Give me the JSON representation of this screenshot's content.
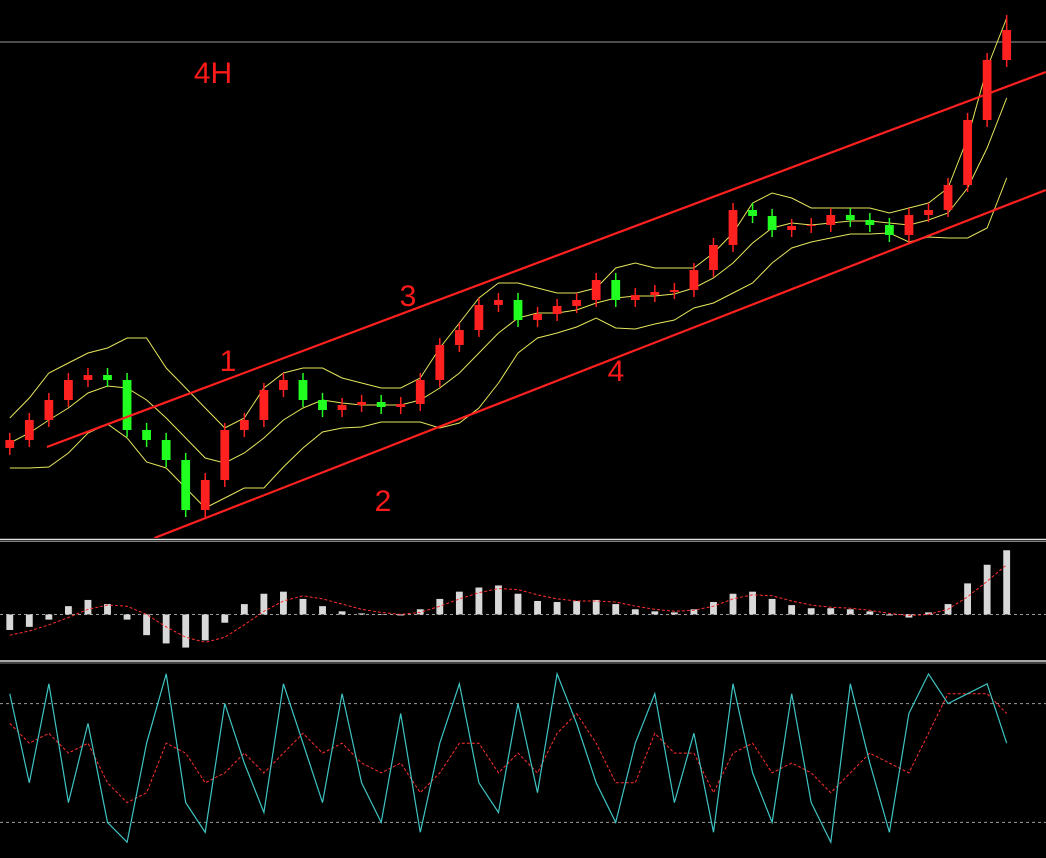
{
  "chart_data": [
    {
      "type": "candlestick",
      "annotations": [
        "4H",
        "1",
        "2",
        "3",
        "4"
      ],
      "xlim": [
        -0.5,
        52.5
      ],
      "ylim": [
        0,
        538
      ],
      "up_color": "#ff2020",
      "down_color": "#20ff20",
      "open": [
        90,
        98,
        118,
        138,
        158,
        163,
        158,
        108,
        98,
        78,
        28,
        58,
        108,
        118,
        148,
        158,
        138,
        128,
        133,
        136,
        131,
        134,
        158,
        193,
        208,
        233,
        238,
        218,
        224,
        232,
        238,
        258,
        238,
        243,
        246,
        248,
        268,
        293,
        328,
        322,
        308,
        312,
        313,
        323,
        318,
        313,
        303,
        323,
        328,
        353,
        418,
        478
      ],
      "high": [
        105,
        125,
        145,
        165,
        170,
        170,
        165,
        115,
        105,
        85,
        65,
        115,
        125,
        155,
        165,
        165,
        145,
        140,
        143,
        143,
        141,
        165,
        200,
        215,
        240,
        245,
        245,
        231,
        239,
        245,
        265,
        265,
        250,
        253,
        255,
        275,
        300,
        335,
        335,
        329,
        319,
        320,
        330,
        330,
        325,
        320,
        330,
        335,
        360,
        425,
        485,
        523
      ],
      "low": [
        83,
        91,
        111,
        131,
        151,
        151,
        101,
        91,
        71,
        21,
        21,
        51,
        101,
        111,
        141,
        131,
        121,
        121,
        126,
        124,
        124,
        127,
        151,
        186,
        201,
        226,
        211,
        211,
        217,
        225,
        231,
        231,
        231,
        236,
        239,
        241,
        261,
        286,
        315,
        301,
        301,
        305,
        306,
        311,
        306,
        296,
        296,
        316,
        321,
        346,
        411,
        471
      ],
      "close": [
        98,
        118,
        138,
        158,
        163,
        158,
        108,
        98,
        78,
        28,
        58,
        108,
        118,
        148,
        158,
        138,
        128,
        133,
        136,
        131,
        134,
        158,
        193,
        208,
        233,
        238,
        218,
        224,
        232,
        238,
        258,
        238,
        243,
        246,
        248,
        268,
        293,
        328,
        322,
        308,
        312,
        313,
        323,
        318,
        313,
        303,
        323,
        328,
        353,
        418,
        478,
        508
      ],
      "bands": {
        "color": "#e6e65c",
        "upper": [
          120,
          140,
          165,
          175,
          185,
          190,
          200,
          200,
          170,
          150,
          130,
          110,
          120,
          150,
          165,
          170,
          170,
          160,
          155,
          150,
          150,
          160,
          190,
          215,
          240,
          255,
          255,
          250,
          245,
          245,
          250,
          270,
          275,
          270,
          270,
          270,
          285,
          305,
          335,
          345,
          340,
          330,
          330,
          330,
          330,
          325,
          330,
          335,
          350,
          400,
          470,
          520
        ],
        "middle": [
          95,
          105,
          118,
          130,
          145,
          152,
          150,
          138,
          120,
          100,
          80,
          75,
          85,
          100,
          118,
          130,
          138,
          135,
          133,
          133,
          133,
          138,
          150,
          165,
          185,
          205,
          220,
          225,
          225,
          228,
          235,
          240,
          242,
          242,
          244,
          250,
          260,
          275,
          295,
          310,
          315,
          313,
          315,
          317,
          317,
          315,
          313,
          318,
          325,
          350,
          390,
          440
        ],
        "lower": [
          70,
          70,
          71,
          85,
          105,
          114,
          100,
          76,
          70,
          50,
          30,
          40,
          50,
          50,
          71,
          90,
          106,
          110,
          111,
          116,
          116,
          116,
          110,
          115,
          130,
          155,
          185,
          200,
          205,
          211,
          220,
          210,
          209,
          214,
          218,
          230,
          235,
          245,
          255,
          275,
          290,
          296,
          300,
          304,
          304,
          305,
          296,
          301,
          300,
          300,
          310,
          360
        ]
      },
      "channels": [
        {
          "x": [
            1.9,
            53
          ],
          "y": [
            91,
            466
          ]
        },
        {
          "x": [
            7.4,
            53
          ],
          "y": [
            0,
            348
          ]
        }
      ],
      "channel_color": "#ff2020",
      "price_line": 496,
      "price_line_color": "#9a9a9a"
    },
    {
      "type": "macd",
      "xlim": [
        -0.5,
        52.5
      ],
      "ylim": [
        -44,
        69
      ],
      "levels": [
        0
      ],
      "color": "#d8d8d8",
      "signal_color": "#ff3030",
      "values": [
        -15,
        -12,
        -5,
        8,
        14,
        10,
        -5,
        -20,
        -28,
        -32,
        -25,
        -8,
        10,
        20,
        22,
        15,
        8,
        3,
        1,
        0,
        -1,
        5,
        15,
        22,
        26,
        28,
        20,
        13,
        12,
        13,
        14,
        10,
        5,
        3,
        2,
        5,
        12,
        20,
        22,
        15,
        9,
        6,
        6,
        5,
        3,
        -1,
        -3,
        2,
        10,
        30,
        48,
        62
      ],
      "signal": [
        -20,
        -16,
        -10,
        -3,
        5,
        9,
        8,
        0,
        -12,
        -22,
        -27,
        -22,
        -10,
        3,
        13,
        18,
        15,
        10,
        5,
        2,
        0,
        2,
        8,
        15,
        21,
        25,
        24,
        19,
        15,
        13,
        13,
        12,
        8,
        5,
        3,
        4,
        8,
        15,
        19,
        18,
        13,
        9,
        7,
        6,
        4,
        1,
        -1,
        0,
        5,
        17,
        32,
        48
      ]
    },
    {
      "type": "stochastic",
      "xlim": [
        -0.5,
        52.5
      ],
      "ylim": [
        0,
        100
      ],
      "levels": [
        20,
        80
      ],
      "color": "#3fc4c4",
      "signal_color": "#ff3030",
      "values": [
        85,
        40,
        90,
        30,
        70,
        20,
        10,
        60,
        95,
        30,
        15,
        80,
        50,
        25,
        90,
        60,
        30,
        85,
        40,
        20,
        75,
        15,
        60,
        90,
        40,
        25,
        80,
        35,
        95,
        70,
        40,
        20,
        60,
        85,
        30,
        65,
        15,
        90,
        45,
        20,
        85,
        30,
        10,
        90,
        50,
        15,
        75,
        95,
        80,
        85,
        90,
        60
      ],
      "signal": [
        70,
        60,
        65,
        55,
        60,
        40,
        30,
        35,
        60,
        55,
        40,
        45,
        55,
        45,
        55,
        65,
        55,
        60,
        50,
        45,
        50,
        35,
        45,
        60,
        60,
        45,
        55,
        45,
        65,
        75,
        60,
        40,
        40,
        65,
        55,
        55,
        35,
        55,
        60,
        45,
        50,
        45,
        35,
        45,
        55,
        50,
        45,
        65,
        85,
        85,
        85,
        75
      ]
    }
  ]
}
